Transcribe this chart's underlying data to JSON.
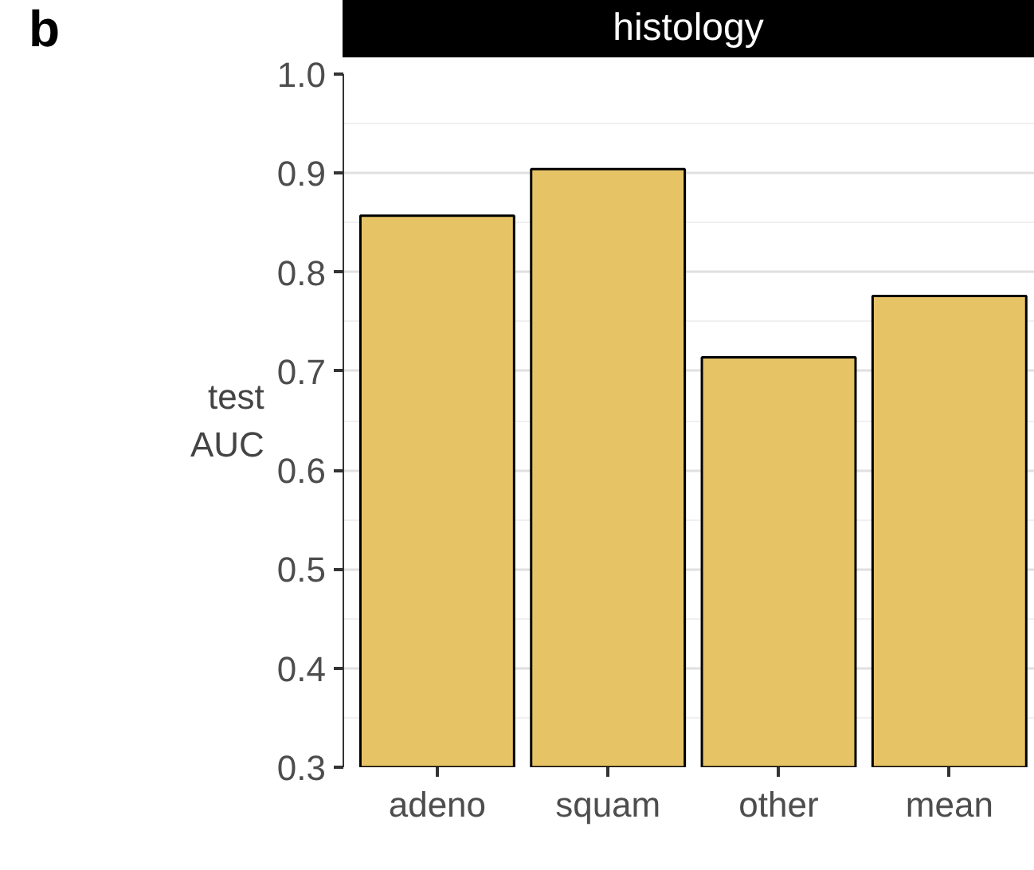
{
  "chart_data": {
    "type": "bar",
    "title": "histology",
    "ylabel": "test\nAUC",
    "annotations": [
      "b"
    ],
    "categories": [
      "adeno",
      "squam",
      "other",
      "mean"
    ],
    "values": [
      0.857,
      0.904,
      0.714,
      0.776
    ],
    "color": "#e6c466",
    "ylim": [
      0.3,
      1.0
    ],
    "yticks": [
      0.3,
      0.4,
      0.5,
      0.6,
      0.7,
      0.8,
      0.9,
      {
        "value": 1.0,
        "label": "1.0"
      }
    ],
    "grid": "y"
  }
}
